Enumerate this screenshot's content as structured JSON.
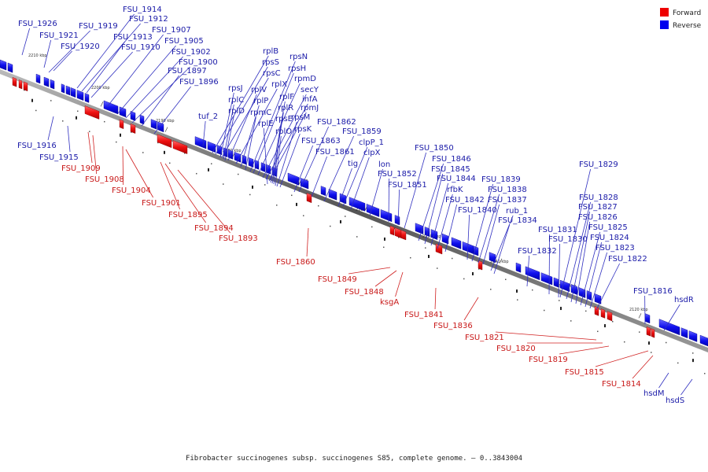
{
  "legend": {
    "forward": {
      "label": "Forward",
      "color": "#ee0000"
    },
    "reverse": {
      "label": "Reverse",
      "color": "#0000ee"
    }
  },
  "caption": "Fibrobacter succinogenes subsp. succinogenes S85, complete genome. – 0..3843004",
  "ticks": [
    "2210 kbp",
    "2200 kbp",
    "2190 kbp",
    "2180 kbp",
    "2170 kbp",
    "2160 kbp",
    "2150 kbp",
    "2140 kbp",
    "2130 kbp",
    "2120 kbp"
  ],
  "reverse_labels": [
    "FSU_1926",
    "FSU_1921",
    "FSU_1920",
    "FSU_1919",
    "FSU_1914",
    "FSU_1912",
    "FSU_1913",
    "FSU_1910",
    "FSU_1907",
    "FSU_1905",
    "FSU_1902",
    "FSU_1900",
    "FSU_1897",
    "FSU_1896",
    "tuf_2",
    "rplB",
    "rpsS",
    "rpsC",
    "rplV",
    "rplX",
    "rplP",
    "rpmC",
    "rpsN",
    "rpsH",
    "rpmD",
    "secY",
    "infA",
    "rpmJ",
    "rpsJ",
    "rplC",
    "rplD",
    "rplF",
    "rplR",
    "rpsE",
    "rplE",
    "rplO",
    "rpsM",
    "rpsK",
    "FSU_1862",
    "FSU_1859",
    "FSU_1863",
    "FSU_1861",
    "clpP_1",
    "clpX",
    "tig",
    "lon",
    "FSU_1852",
    "FSU_1851",
    "FSU_1850",
    "FSU_1846",
    "FSU_1845",
    "FSU_1844",
    "rfbK",
    "FSU_1842",
    "FSU_1840",
    "FSU_1839",
    "FSU_1838",
    "FSU_1837",
    "rub_1",
    "FSU_1834",
    "FSU_1831",
    "FSU_1830",
    "FSU_1832",
    "FSU_1829",
    "FSU_1828",
    "FSU_1827",
    "FSU_1826",
    "FSU_1825",
    "FSU_1824",
    "FSU_1823",
    "FSU_1822",
    "FSU_1816",
    "hsdR",
    "FSU_1916",
    "FSU_1915",
    "hsdM",
    "hsdS"
  ],
  "forward_labels": [
    "FSU_1909",
    "FSU_1908",
    "FSU_1904",
    "FSU_1901",
    "FSU_1895",
    "FSU_1894",
    "FSU_1893",
    "FSU_1860",
    "FSU_1849",
    "FSU_1848",
    "ksgA",
    "FSU_1841",
    "FSU_1836",
    "FSU_1821",
    "FSU_1820",
    "FSU_1819",
    "FSU_1815",
    "FSU_1814"
  ]
}
